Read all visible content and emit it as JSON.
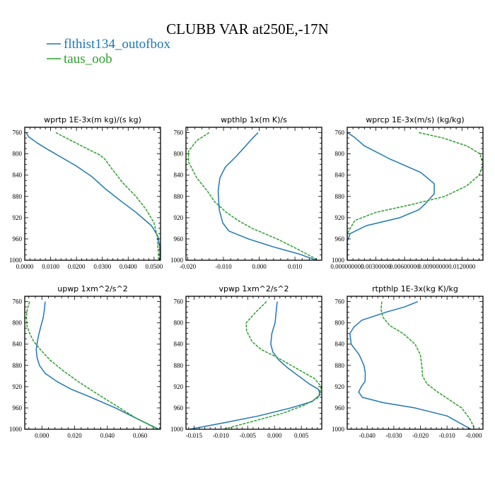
{
  "title": "CLUBB VAR at250E,-17N",
  "legend": [
    {
      "name": "flthist134_outofbox",
      "color": "#1f77b4",
      "dash": "solid"
    },
    {
      "name": "taus_oob",
      "color": "#2ca02c",
      "dash": "dashed"
    }
  ],
  "chart_data": [
    {
      "type": "line",
      "title": "wprtp   1E-3x(m kg)/(s kg)",
      "ylim": [
        1000,
        750
      ],
      "yticks": [
        760,
        800,
        840,
        880,
        920,
        960,
        1000
      ],
      "xlim": [
        0,
        0.0525
      ],
      "xticks": [
        0,
        0.01,
        0.02,
        0.03,
        0.04,
        0.05
      ],
      "xticklabels": [
        "0.0000",
        "0.0100",
        "0.0200",
        "0.0300",
        "0.0400",
        "0.0500"
      ],
      "series": [
        {
          "name": "flthist134_outofbox",
          "x": [
            0.0005,
            0.0015,
            0.005,
            0.009,
            0.014,
            0.02,
            0.026,
            0.031,
            0.037,
            0.043,
            0.049,
            0.0515,
            0.0522,
            0.0523
          ],
          "y": [
            760,
            768,
            780,
            792,
            806,
            823,
            843,
            865,
            888,
            910,
            935,
            955,
            975,
            1000
          ]
        },
        {
          "name": "taus_oob",
          "x": [
            0.012,
            0.018,
            0.024,
            0.029,
            0.031,
            0.034,
            0.038,
            0.043,
            0.047,
            0.05,
            0.0512,
            0.0515,
            0.0518
          ],
          "y": [
            760,
            775,
            790,
            802,
            810,
            830,
            855,
            880,
            905,
            930,
            955,
            975,
            1000
          ]
        }
      ]
    },
    {
      "type": "line",
      "title": "wpthlp   1x(m K)/s",
      "ylim": [
        1000,
        750
      ],
      "yticks": [
        760,
        800,
        840,
        880,
        920,
        960,
        1000
      ],
      "xlim": [
        -0.0205,
        0.0175
      ],
      "xticks": [
        -0.02,
        -0.01,
        0,
        0.01
      ],
      "xticklabels": [
        "-0.020",
        "-0.010",
        "0.000",
        "0.010"
      ],
      "series": [
        {
          "name": "flthist134_outofbox",
          "x": [
            -0.0003,
            -0.0018,
            -0.0038,
            -0.0065,
            -0.0095,
            -0.011,
            -0.0115,
            -0.0112,
            -0.0102,
            -0.0085,
            -0.003,
            0.004,
            0.011,
            0.016
          ],
          "y": [
            760,
            770,
            785,
            805,
            825,
            845,
            870,
            905,
            930,
            945,
            960,
            975,
            988,
            1000
          ]
        },
        {
          "name": "taus_oob",
          "x": [
            -0.014,
            -0.0175,
            -0.0198,
            -0.0198,
            -0.0175,
            -0.0145,
            -0.0125,
            -0.0092,
            -0.006,
            -0.002,
            0.005,
            0.011,
            0.0165
          ],
          "y": [
            760,
            775,
            795,
            815,
            845,
            870,
            890,
            910,
            925,
            940,
            960,
            980,
            1000
          ]
        }
      ]
    },
    {
      "type": "line",
      "title": "wprcp   1E-3x(m/s) (kg/kg)",
      "ylim": [
        1000,
        750
      ],
      "yticks": [
        760,
        800,
        840,
        880,
        920,
        960,
        1000
      ],
      "xlim": [
        0,
        0.0142
      ],
      "xticks": [
        0,
        0.003,
        0.006,
        0.009,
        0.012
      ],
      "xticklabels": [
        "0.000000000",
        "0.00300000",
        "0.00600000",
        "0.00900000",
        "0.0120000"
      ],
      "series": [
        {
          "name": "flthist134_outofbox",
          "x": [
            0,
            0.0007,
            0.0018,
            0.0045,
            0.0077,
            0.0091,
            0.0091,
            0.0081,
            0.0075,
            0.0055,
            0.002,
            0.0003,
            0,
            0
          ],
          "y": [
            760,
            768,
            785,
            810,
            835,
            856,
            875,
            895,
            905,
            920,
            935,
            950,
            965,
            1000
          ]
        },
        {
          "name": "taus_oob",
          "x": [
            0.0075,
            0.01,
            0.0125,
            0.0139,
            0.0142,
            0.0138,
            0.0125,
            0.0102,
            0.0068,
            0.003,
            0.0008,
            0,
            0
          ],
          "y": [
            760,
            770,
            785,
            800,
            820,
            840,
            860,
            880,
            895,
            910,
            925,
            950,
            1000
          ]
        }
      ]
    },
    {
      "type": "line",
      "title": "upwp   1xm^2/s^2",
      "ylim": [
        1000,
        750
      ],
      "yticks": [
        760,
        800,
        840,
        880,
        920,
        960,
        1000
      ],
      "xlim": [
        -0.0105,
        0.0725
      ],
      "xticks": [
        0,
        0.02,
        0.04,
        0.06
      ],
      "xticklabels": [
        "0.000",
        "0.020",
        "0.040",
        "0.060"
      ],
      "series": [
        {
          "name": "flthist134_outofbox",
          "x": [
            0.002,
            0.0015,
            0.0008,
            -0.0005,
            -0.0018,
            -0.0028,
            -0.0035,
            -0.003,
            -0.0015,
            0.002,
            0.009,
            0.018,
            0.03,
            0.045,
            0.058,
            0.0715
          ],
          "y": [
            760,
            775,
            790,
            805,
            820,
            835,
            850,
            865,
            880,
            895,
            910,
            925,
            940,
            960,
            980,
            1000
          ]
        },
        {
          "name": "taus_oob",
          "x": [
            -0.0075,
            -0.009,
            -0.0095,
            -0.0092,
            -0.0075,
            -0.005,
            -0.001,
            0.005,
            0.013,
            0.022,
            0.032,
            0.045,
            0.058,
            0.071
          ],
          "y": [
            760,
            775,
            790,
            805,
            820,
            835,
            850,
            870,
            890,
            910,
            930,
            955,
            980,
            1000
          ]
        }
      ]
    },
    {
      "type": "line",
      "title": "vpwp   1xm^2/s^2",
      "ylim": [
        1000,
        750
      ],
      "yticks": [
        760,
        800,
        840,
        880,
        920,
        960,
        1000
      ],
      "xlim": [
        -0.0165,
        0.0088
      ],
      "xticks": [
        -0.015,
        -0.01,
        -0.005,
        0,
        0.005
      ],
      "xticklabels": [
        "-0.015",
        "-0.010",
        "-0.005",
        "0.000",
        "0.005"
      ],
      "series": [
        {
          "name": "flthist134_outofbox",
          "x": [
            0.0005,
            0.0003,
            0.0001,
            -0.0005,
            -0.0007,
            -0.0003,
            0.0008,
            0.0025,
            0.0045,
            0.0065,
            0.0082,
            0.0085,
            0.007,
            0.003,
            -0.003,
            -0.0095,
            -0.0158
          ],
          "y": [
            760,
            780,
            800,
            820,
            840,
            855,
            870,
            885,
            900,
            915,
            925,
            935,
            948,
            960,
            975,
            988,
            1000
          ]
        },
        {
          "name": "taus_oob",
          "x": [
            -0.0015,
            -0.0035,
            -0.0053,
            -0.0052,
            -0.0042,
            -0.0025,
            0.0005,
            0.004,
            0.0075,
            0.0087,
            0.0082,
            0.0055,
            0.0015,
            -0.004,
            -0.0095
          ],
          "y": [
            760,
            780,
            800,
            815,
            835,
            850,
            865,
            885,
            905,
            920,
            940,
            955,
            970,
            985,
            1000
          ]
        }
      ]
    },
    {
      "type": "line",
      "title": "rtpthlp   1E-3x(kg K)/kg",
      "ylim": [
        1000,
        750
      ],
      "yticks": [
        760,
        800,
        840,
        880,
        920,
        960,
        1000
      ],
      "xlim": [
        -0.0475,
        0.0035
      ],
      "xticks": [
        -0.04,
        -0.03,
        -0.02,
        -0.01,
        0
      ],
      "xticklabels": [
        "-0.040",
        "-0.030",
        "-0.020",
        "-0.010",
        "-0.000"
      ],
      "series": [
        {
          "name": "flthist134_outofbox",
          "x": [
            -0.021,
            -0.026,
            -0.033,
            -0.042,
            -0.045,
            -0.0465,
            -0.046,
            -0.043,
            -0.0412,
            -0.0407,
            -0.0408,
            -0.0422,
            -0.0432,
            -0.0418,
            -0.034,
            -0.022,
            -0.01,
            -0.001
          ],
          "y": [
            760,
            770,
            780,
            795,
            808,
            820,
            840,
            860,
            880,
            895,
            910,
            920,
            930,
            940,
            950,
            960,
            975,
            1000
          ]
        },
        {
          "name": "taus_oob",
          "x": [
            -0.0345,
            -0.0348,
            -0.034,
            -0.0315,
            -0.0265,
            -0.022,
            -0.02,
            -0.0195,
            -0.0192,
            -0.0175,
            -0.0135,
            -0.009,
            -0.0045,
            -0.0015,
            0.0005
          ],
          "y": [
            760,
            775,
            790,
            805,
            820,
            840,
            860,
            880,
            900,
            915,
            930,
            945,
            960,
            980,
            1000
          ]
        }
      ]
    }
  ]
}
